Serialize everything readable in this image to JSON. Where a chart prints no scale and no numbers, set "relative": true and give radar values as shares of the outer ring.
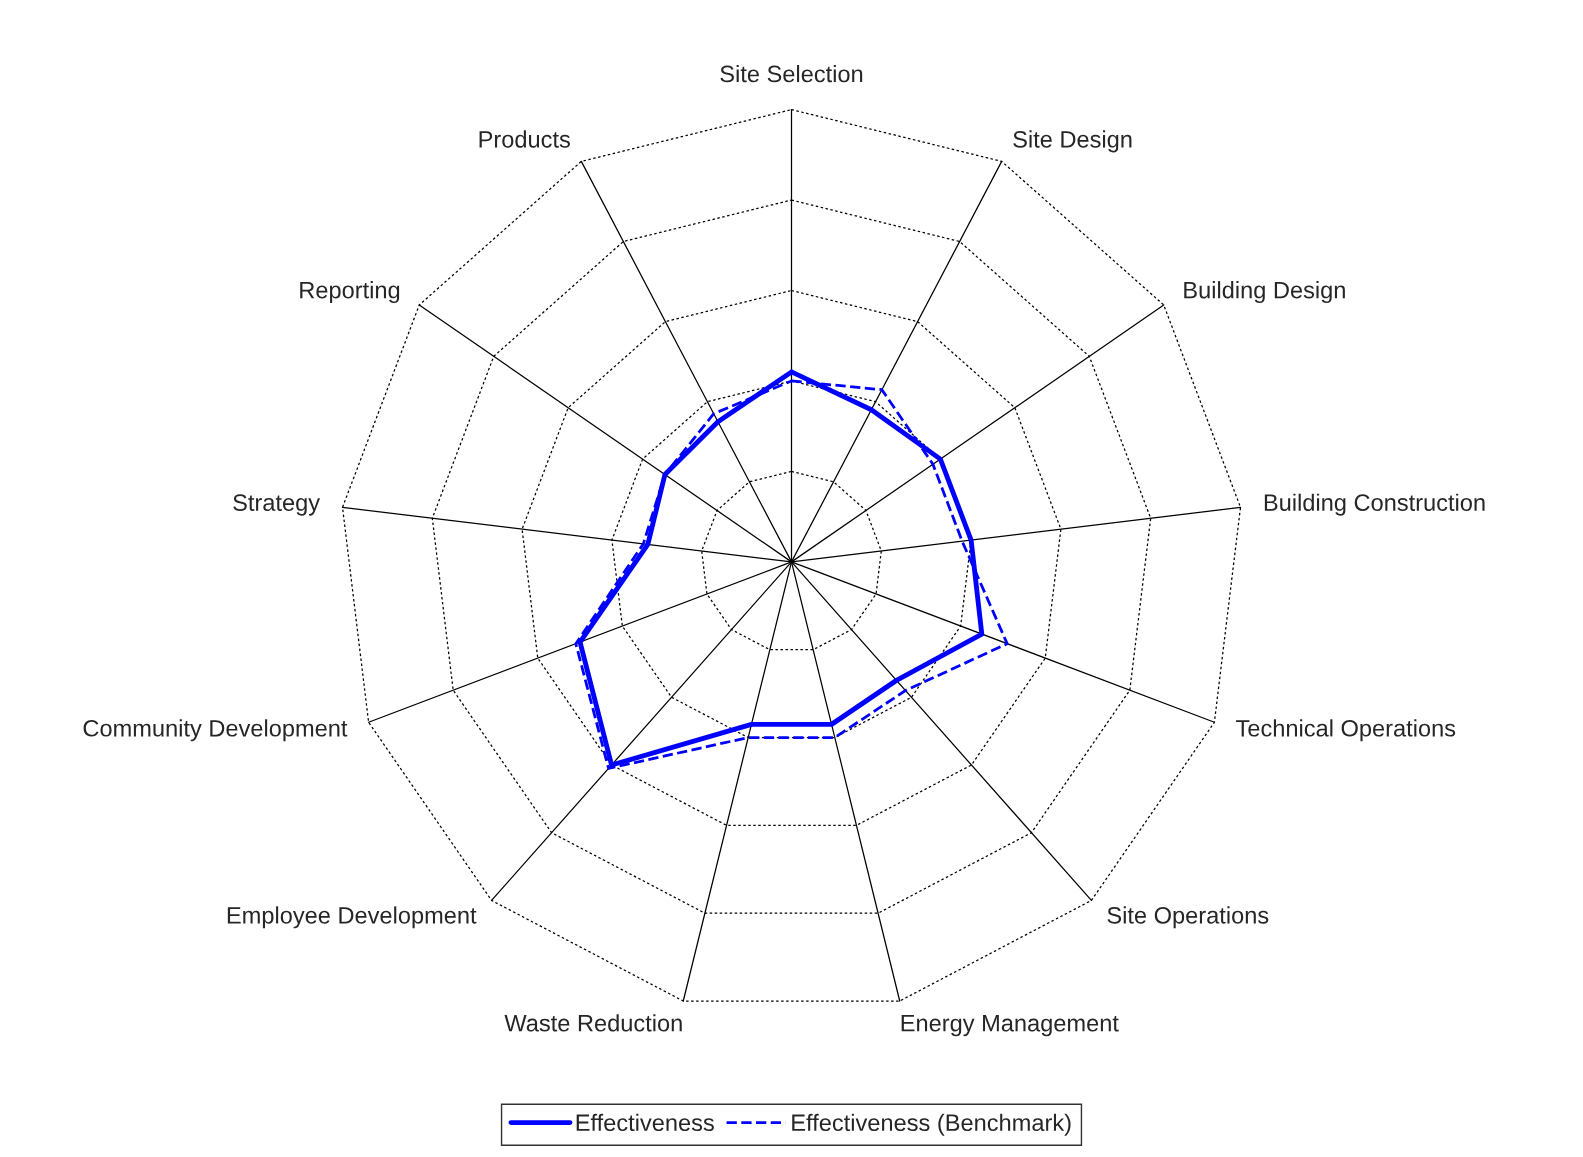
{
  "chart_data": {
    "type": "radar",
    "relative": true,
    "grid": true,
    "legend": "bottom",
    "categories": [
      "Site Selection",
      "Site Design",
      "Building Design",
      "Building Construction",
      "Technical Operations",
      "Site Operations",
      "Energy Management",
      "Waste Reduction",
      "Employee Development",
      "Community Development",
      "Strategy",
      "Reporting",
      "Products"
    ],
    "series": [
      {
        "name": "Effectiveness",
        "color": "#0000ff",
        "line_style": "solid",
        "values": [
          0.42,
          0.38,
          0.4,
          0.4,
          0.45,
          0.35,
          0.37,
          0.37,
          0.6,
          0.5,
          0.32,
          0.34,
          0.35
        ]
      },
      {
        "name": "Effectiveness (Benchmark)",
        "color": "#0000ff",
        "line_style": "dashed",
        "values": [
          0.4,
          0.43,
          0.38,
          0.38,
          0.51,
          0.38,
          0.4,
          0.4,
          0.61,
          0.51,
          0.33,
          0.34,
          0.37
        ]
      }
    ]
  }
}
